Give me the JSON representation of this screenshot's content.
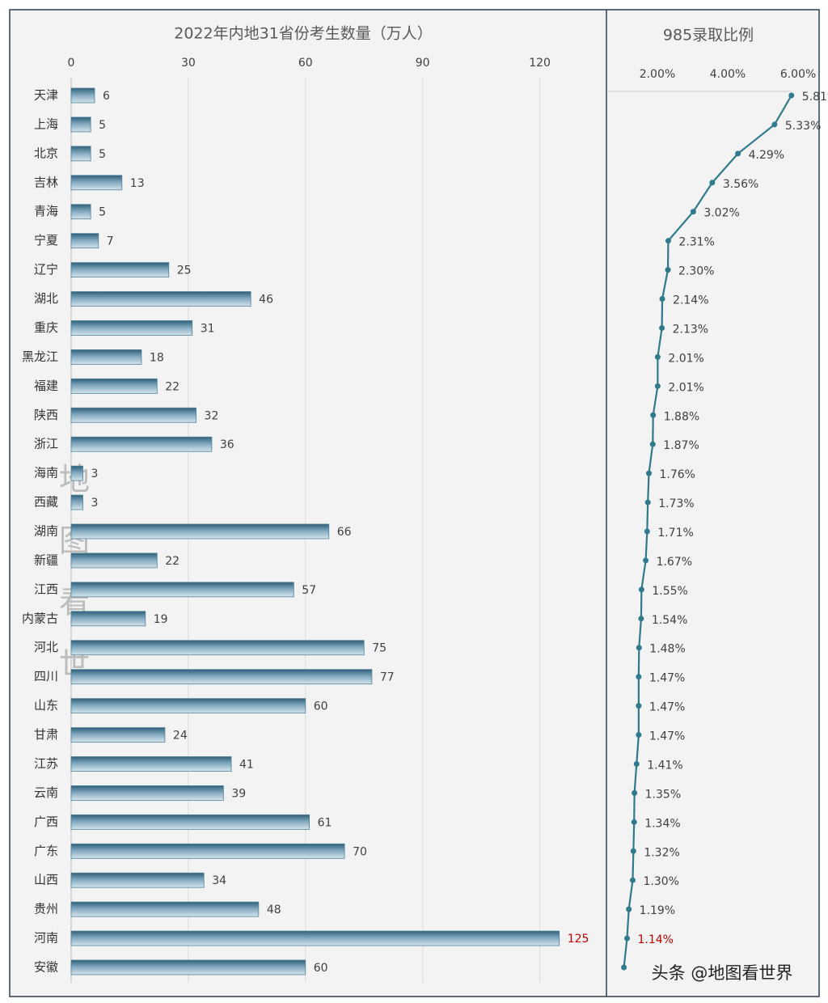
{
  "chart_data": [
    {
      "type": "bar",
      "orientation": "horizontal",
      "title": "2022年内地31省份考生数量（万人）",
      "categories": [
        "天津",
        "上海",
        "北京",
        "吉林",
        "青海",
        "宁夏",
        "辽宁",
        "湖北",
        "重庆",
        "黑龙江",
        "福建",
        "陕西",
        "浙江",
        "海南",
        "西藏",
        "湖南",
        "新疆",
        "江西",
        "内蒙古",
        "河北",
        "四川",
        "山东",
        "甘肃",
        "江苏",
        "云南",
        "广西",
        "广东",
        "山西",
        "贵州",
        "河南",
        "安徽"
      ],
      "values": [
        6,
        5,
        5,
        13,
        5,
        7,
        25,
        46,
        31,
        18,
        22,
        32,
        36,
        3,
        3,
        66,
        22,
        57,
        19,
        75,
        77,
        60,
        24,
        41,
        39,
        61,
        70,
        34,
        48,
        125,
        60
      ],
      "color": "#4f8199",
      "xlim": [
        0,
        135
      ],
      "xticks": [
        0,
        30,
        60,
        90,
        120
      ],
      "grid": true,
      "highlight_category": "河南",
      "highlight_color": "#c00000"
    },
    {
      "type": "line",
      "orientation": "vertical",
      "title": "985录取比例",
      "values": [
        5.81,
        5.33,
        4.29,
        3.56,
        3.02,
        2.31,
        2.3,
        2.14,
        2.13,
        2.01,
        2.01,
        1.88,
        1.87,
        1.76,
        1.73,
        1.71,
        1.67,
        1.55,
        1.54,
        1.48,
        1.47,
        1.47,
        1.47,
        1.41,
        1.35,
        1.34,
        1.32,
        1.3,
        1.19,
        1.14,
        1.05
      ],
      "value_labels": [
        "5.81%",
        "5.33%",
        "4.29%",
        "3.56%",
        "3.02%",
        "2.31%",
        "2.30%",
        "2.14%",
        "2.13%",
        "2.01%",
        "2.01%",
        "1.88%",
        "1.87%",
        "1.76%",
        "1.73%",
        "1.71%",
        "1.67%",
        "1.55%",
        "1.54%",
        "1.48%",
        "1.47%",
        "1.47%",
        "1.47%",
        "1.41%",
        "1.35%",
        "1.34%",
        "1.32%",
        "1.30%",
        "1.19%",
        "1.14%",
        null
      ],
      "color": "#2f7a8c",
      "xlim": [
        0.6,
        6.55
      ],
      "xticks": [
        {
          "value": 2,
          "label": "2.00%"
        },
        {
          "value": 4,
          "label": "4.00%"
        },
        {
          "value": 6,
          "label": "6.00%"
        }
      ],
      "highlight_index_label": "1.14%",
      "highlight_color": "#c00000"
    }
  ],
  "watermark": "头条 @地图看世界",
  "side_watermark": [
    "地",
    "图",
    "看",
    "世"
  ]
}
